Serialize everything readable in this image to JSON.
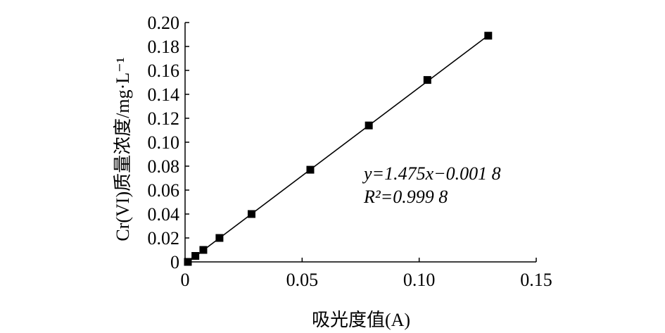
{
  "chart_data": {
    "type": "scatter",
    "title": "",
    "xlabel": "吸光度值(A)",
    "ylabel": "Cr(VI)质量浓度/mg·L⁻¹",
    "xlim": [
      0,
      0.15
    ],
    "ylim": [
      0,
      0.2
    ],
    "x_ticks": [
      "0",
      "0.05",
      "0.10",
      "0.15"
    ],
    "y_ticks": [
      "0",
      "0.02",
      "0.04",
      "0.06",
      "0.08",
      "0.10",
      "0.12",
      "0.14",
      "0.16",
      "0.18",
      "0.20"
    ],
    "series": [
      {
        "points": [
          [
            0.0012,
            0.0
          ],
          [
            0.0044,
            0.005
          ],
          [
            0.0078,
            0.01
          ],
          [
            0.0147,
            0.02
          ],
          [
            0.0284,
            0.04
          ],
          [
            0.0535,
            0.077
          ],
          [
            0.0785,
            0.114
          ],
          [
            0.1035,
            0.152
          ],
          [
            0.1295,
            0.189
          ]
        ]
      }
    ],
    "fit_line": {
      "slope": 1.475,
      "intercept": -0.0018,
      "x_range": [
        0.0012,
        0.1295
      ]
    },
    "annotations": {
      "equation": "y=1.475x−0.001 8",
      "r_squared": "R²=0.999 8"
    },
    "grid": false,
    "marker": "square",
    "color": "#000000"
  }
}
